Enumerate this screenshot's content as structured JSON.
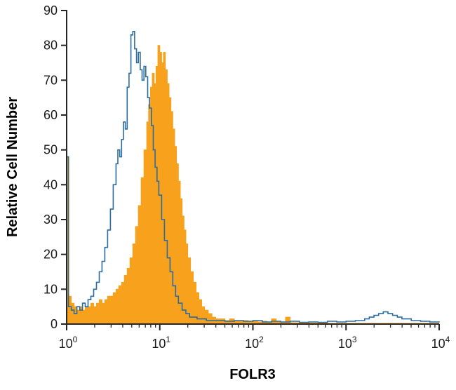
{
  "chart_data": {
    "type": "area",
    "subtype": "flow-cytometry-histogram",
    "title": "",
    "xlabel": "FOLR3",
    "ylabel": "Relative Cell Number",
    "x_scale": "log10",
    "xlog_range": [
      0,
      4
    ],
    "x_tick_base": "10",
    "x_tick_exponents": [
      0,
      1,
      2,
      3,
      4
    ],
    "ylim": [
      0,
      90
    ],
    "y_ticks": [
      0,
      10,
      20,
      30,
      40,
      50,
      60,
      70,
      80,
      90
    ],
    "grid": false,
    "legend": "none",
    "axis_color": "#262626",
    "series": [
      {
        "name": "stained-filled",
        "style": "filled",
        "color": "#F7A11C",
        "points": [
          [
            0.0,
            48
          ],
          [
            0.02,
            8
          ],
          [
            0.05,
            6
          ],
          [
            0.08,
            5
          ],
          [
            0.11,
            4
          ],
          [
            0.14,
            5
          ],
          [
            0.17,
            4
          ],
          [
            0.2,
            5
          ],
          [
            0.23,
            5
          ],
          [
            0.26,
            6
          ],
          [
            0.29,
            5
          ],
          [
            0.32,
            6
          ],
          [
            0.35,
            7
          ],
          [
            0.38,
            6
          ],
          [
            0.41,
            7
          ],
          [
            0.44,
            8
          ],
          [
            0.47,
            8
          ],
          [
            0.5,
            9
          ],
          [
            0.53,
            10
          ],
          [
            0.56,
            11
          ],
          [
            0.59,
            12
          ],
          [
            0.62,
            14
          ],
          [
            0.65,
            16
          ],
          [
            0.68,
            19
          ],
          [
            0.71,
            23
          ],
          [
            0.74,
            28
          ],
          [
            0.77,
            34
          ],
          [
            0.8,
            42
          ],
          [
            0.83,
            50
          ],
          [
            0.86,
            58
          ],
          [
            0.88,
            63
          ],
          [
            0.9,
            68
          ],
          [
            0.92,
            72
          ],
          [
            0.94,
            69
          ],
          [
            0.96,
            74
          ],
          [
            0.98,
            80
          ],
          [
            1.0,
            78
          ],
          [
            1.02,
            75
          ],
          [
            1.04,
            78
          ],
          [
            1.06,
            73
          ],
          [
            1.08,
            69
          ],
          [
            1.1,
            65
          ],
          [
            1.12,
            61
          ],
          [
            1.14,
            56
          ],
          [
            1.16,
            51
          ],
          [
            1.18,
            46
          ],
          [
            1.2,
            41
          ],
          [
            1.22,
            36
          ],
          [
            1.24,
            31
          ],
          [
            1.26,
            27
          ],
          [
            1.28,
            23
          ],
          [
            1.3,
            19
          ],
          [
            1.33,
            15
          ],
          [
            1.36,
            12
          ],
          [
            1.39,
            9
          ],
          [
            1.42,
            7
          ],
          [
            1.45,
            5
          ],
          [
            1.48,
            4
          ],
          [
            1.52,
            3
          ],
          [
            1.56,
            2
          ],
          [
            1.6,
            1.5
          ],
          [
            1.65,
            1.5
          ],
          [
            1.7,
            1
          ],
          [
            1.75,
            1.5
          ],
          [
            1.8,
            1
          ],
          [
            1.85,
            0.8
          ],
          [
            1.9,
            1
          ],
          [
            1.95,
            0.8
          ],
          [
            2.0,
            1
          ],
          [
            2.05,
            0.6
          ],
          [
            2.1,
            0.8
          ],
          [
            2.15,
            0.6
          ],
          [
            2.2,
            1.5
          ],
          [
            2.25,
            0.6
          ],
          [
            2.3,
            0.5
          ],
          [
            2.35,
            2
          ],
          [
            2.4,
            0.4
          ],
          [
            2.5,
            0.3
          ],
          [
            2.6,
            0.3
          ],
          [
            2.8,
            0.2
          ],
          [
            3.0,
            0.2
          ],
          [
            3.2,
            0.2
          ],
          [
            3.5,
            0.2
          ],
          [
            3.8,
            0.2
          ],
          [
            4.0,
            0.2
          ]
        ]
      },
      {
        "name": "control-open-line",
        "style": "open-line",
        "color": "#2B6C9F",
        "points": [
          [
            0.0,
            48
          ],
          [
            0.02,
            5
          ],
          [
            0.05,
            4
          ],
          [
            0.08,
            3
          ],
          [
            0.11,
            5
          ],
          [
            0.14,
            4
          ],
          [
            0.17,
            6
          ],
          [
            0.2,
            5
          ],
          [
            0.23,
            7
          ],
          [
            0.26,
            8
          ],
          [
            0.29,
            10
          ],
          [
            0.32,
            12
          ],
          [
            0.35,
            15
          ],
          [
            0.38,
            18
          ],
          [
            0.41,
            22
          ],
          [
            0.44,
            27
          ],
          [
            0.47,
            33
          ],
          [
            0.5,
            40
          ],
          [
            0.53,
            46
          ],
          [
            0.55,
            50
          ],
          [
            0.57,
            48
          ],
          [
            0.59,
            53
          ],
          [
            0.61,
            58
          ],
          [
            0.63,
            56
          ],
          [
            0.65,
            68
          ],
          [
            0.67,
            72
          ],
          [
            0.69,
            83
          ],
          [
            0.71,
            84
          ],
          [
            0.73,
            79
          ],
          [
            0.75,
            75
          ],
          [
            0.77,
            78
          ],
          [
            0.79,
            73
          ],
          [
            0.81,
            70
          ],
          [
            0.83,
            74
          ],
          [
            0.85,
            71
          ],
          [
            0.87,
            65
          ],
          [
            0.89,
            62
          ],
          [
            0.91,
            57
          ],
          [
            0.93,
            50
          ],
          [
            0.95,
            45
          ],
          [
            0.97,
            41
          ],
          [
            0.99,
            37
          ],
          [
            1.02,
            30
          ],
          [
            1.05,
            24
          ],
          [
            1.08,
            19
          ],
          [
            1.11,
            15
          ],
          [
            1.14,
            11
          ],
          [
            1.17,
            8
          ],
          [
            1.2,
            6
          ],
          [
            1.24,
            4
          ],
          [
            1.28,
            3
          ],
          [
            1.32,
            2
          ],
          [
            1.36,
            2
          ],
          [
            1.4,
            1.5
          ],
          [
            1.5,
            1
          ],
          [
            1.6,
            1
          ],
          [
            1.7,
            0.8
          ],
          [
            1.8,
            1
          ],
          [
            1.9,
            0.8
          ],
          [
            2.0,
            1
          ],
          [
            2.1,
            0.6
          ],
          [
            2.2,
            0.8
          ],
          [
            2.3,
            0.6
          ],
          [
            2.4,
            0.8
          ],
          [
            2.5,
            0.5
          ],
          [
            2.6,
            0.6
          ],
          [
            2.7,
            0.5
          ],
          [
            2.8,
            0.8
          ],
          [
            2.9,
            0.6
          ],
          [
            3.0,
            0.8
          ],
          [
            3.1,
            1
          ],
          [
            3.2,
            1.5
          ],
          [
            3.25,
            2
          ],
          [
            3.3,
            2.5
          ],
          [
            3.35,
            3
          ],
          [
            3.4,
            3.5
          ],
          [
            3.45,
            3
          ],
          [
            3.5,
            2.5
          ],
          [
            3.55,
            2
          ],
          [
            3.6,
            1.5
          ],
          [
            3.7,
            1
          ],
          [
            3.8,
            0.8
          ],
          [
            3.9,
            0.6
          ],
          [
            4.0,
            0.5
          ]
        ]
      }
    ]
  }
}
